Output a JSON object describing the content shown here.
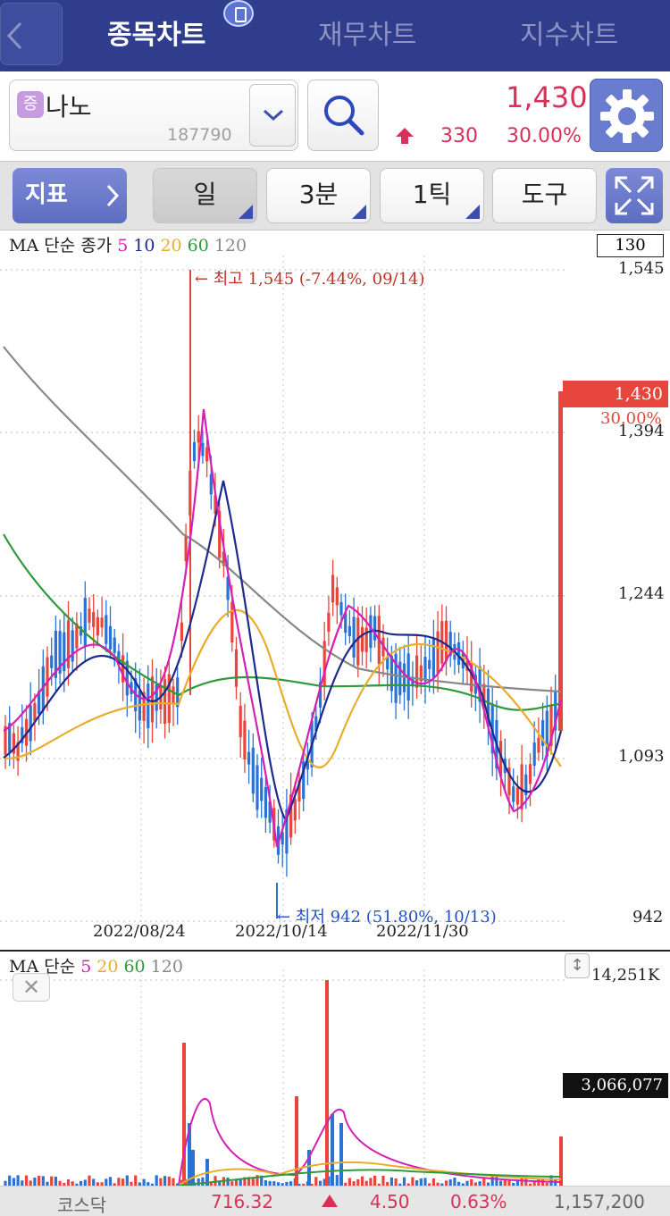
{
  "tabs": {
    "active": "종목차트",
    "financial": "재무차트",
    "index": "지수차트"
  },
  "stock": {
    "badge": "증",
    "name": "나노",
    "code": "187790",
    "price": "1,430",
    "change": "330",
    "change_pct": "30.00%"
  },
  "toolbar": {
    "indicator": "지표",
    "period_day": "일",
    "period_min": "3분",
    "period_tick": "1틱",
    "tools": "도구"
  },
  "chart": {
    "legend_prefix": "MA 단순 종가",
    "ma_periods": [
      {
        "label": "5",
        "color": "#d61fb4"
      },
      {
        "label": "10",
        "color": "#1c2a8c"
      },
      {
        "label": "20",
        "color": "#e9ad2e"
      },
      {
        "label": "60",
        "color": "#2e9a3a"
      },
      {
        "label": "120",
        "color": "#888888"
      }
    ],
    "top_box": "130",
    "price_ticks": [
      "1,545",
      "1,394",
      "1,244",
      "1,093",
      "942"
    ],
    "current_price": "1,430",
    "current_pct": "30.00%",
    "high_annotation": "← 최고 1,545 (-7.44%, 09/14)",
    "low_annotation": "← 최저 942 (51.80%, 10/13)",
    "dates": [
      "2022/08/24",
      "2022/10/14",
      "2022/11/30"
    ]
  },
  "volume": {
    "legend_prefix": "MA 단순",
    "ma_periods": [
      {
        "label": "5",
        "color": "#d61fb4"
      },
      {
        "label": "20",
        "color": "#e9ad2e"
      },
      {
        "label": "60",
        "color": "#2e9a3a"
      },
      {
        "label": "120",
        "color": "#888888"
      }
    ],
    "max_label": "14,251K",
    "current_volume": "3,066,077",
    "close_icon": "✕",
    "scroll_icon": "↕"
  },
  "index_bar": {
    "name": "코스닥",
    "value": "716.32",
    "change": "4.50",
    "change_pct": "0.63%",
    "volume": "1,157,200"
  },
  "colors": {
    "up": "#e8453c",
    "down": "#2a72d4",
    "accent": "#2f3d8c"
  }
}
